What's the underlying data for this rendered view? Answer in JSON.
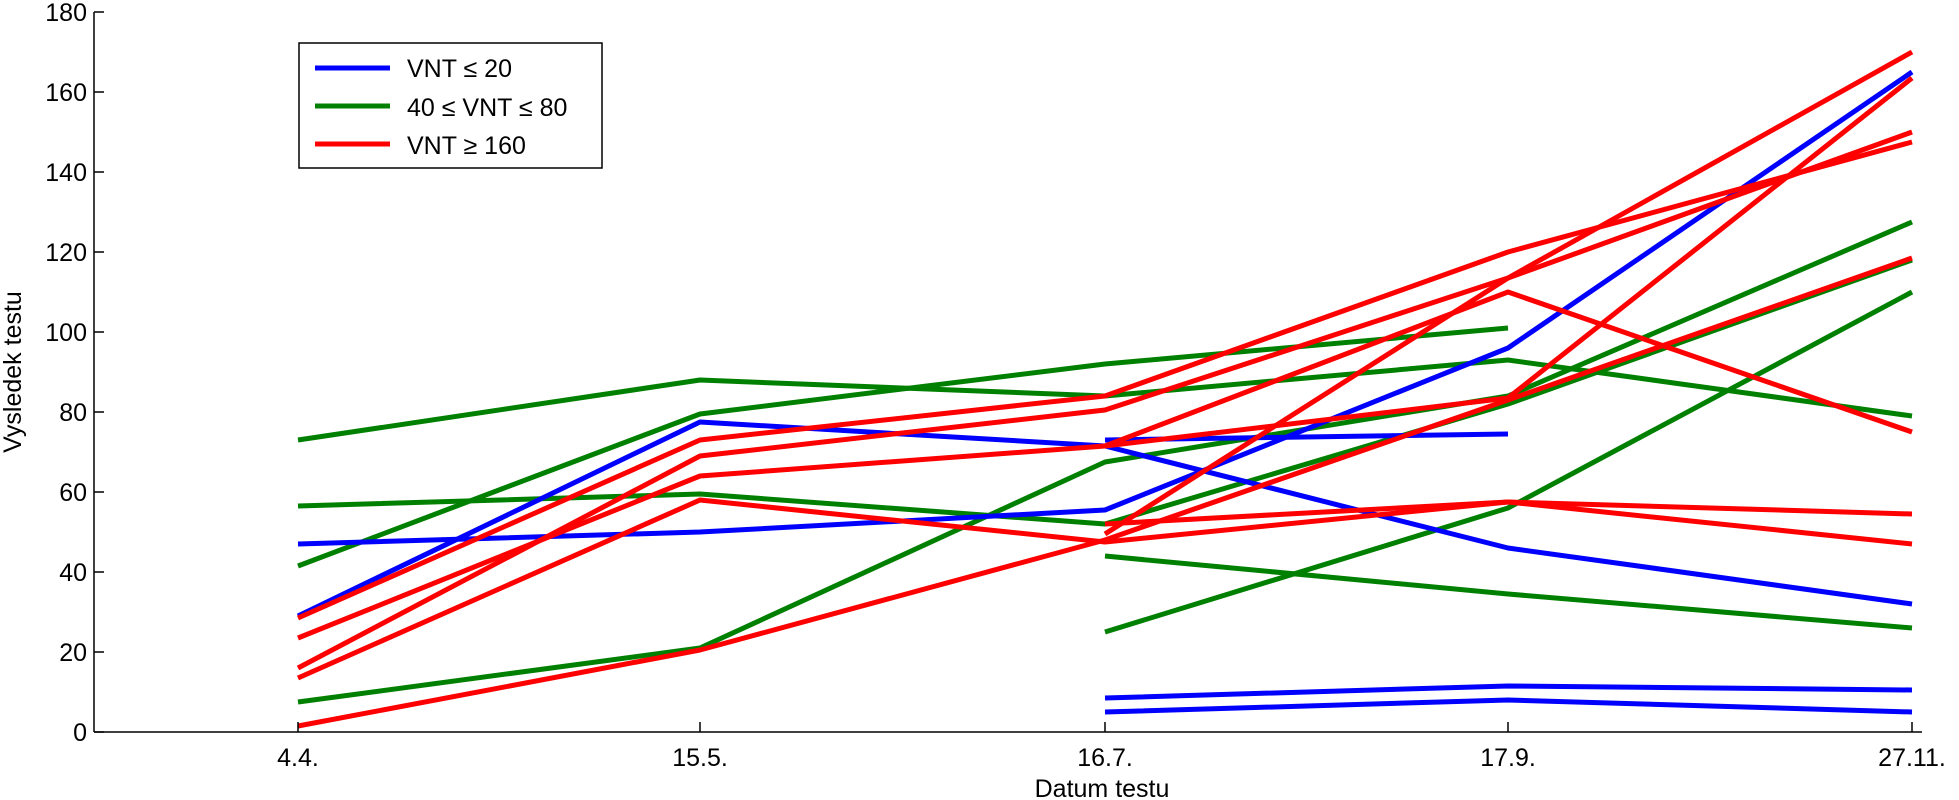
{
  "chart_data": {
    "type": "line",
    "xlabel": "Datum testu",
    "ylabel": "Vysledek testu",
    "x_categories": [
      "4.4.",
      "15.5.",
      "16.7.",
      "17.9.",
      "27.11."
    ],
    "ylim": [
      0,
      180
    ],
    "yticks": [
      0,
      20,
      40,
      60,
      80,
      100,
      120,
      140,
      160,
      180
    ],
    "grid": false,
    "legend_position": "top-left",
    "colors": {
      "blue": "#0000ff",
      "green": "#008000",
      "red": "#ff0000"
    },
    "legend": [
      {
        "label": "VNT ≤ 20",
        "color": "blue"
      },
      {
        "label": "40 ≤ VNT ≤ 80",
        "color": "green"
      },
      {
        "label": "VNT ≥ 160",
        "color": "red"
      }
    ],
    "series": [
      {
        "group": "blue",
        "points": [
          [
            0,
            29
          ],
          [
            1,
            77.5
          ],
          [
            2,
            71.5
          ],
          [
            3,
            46
          ],
          [
            4,
            32
          ]
        ]
      },
      {
        "group": "blue",
        "points": [
          [
            0,
            47
          ],
          [
            1,
            50
          ],
          [
            2,
            55.5
          ],
          [
            3,
            96
          ],
          [
            4,
            165
          ]
        ]
      },
      {
        "group": "blue",
        "points": [
          [
            2,
            73
          ],
          [
            3,
            74.5
          ]
        ]
      },
      {
        "group": "blue",
        "points": [
          [
            2,
            8.5
          ],
          [
            3,
            11.5
          ],
          [
            4,
            10.5
          ]
        ]
      },
      {
        "group": "blue",
        "points": [
          [
            2,
            5
          ],
          [
            3,
            8
          ],
          [
            4,
            5
          ]
        ]
      },
      {
        "group": "green",
        "points": [
          [
            0,
            73
          ],
          [
            1,
            88
          ],
          [
            2,
            84
          ],
          [
            3,
            93
          ],
          [
            4,
            79
          ]
        ]
      },
      {
        "group": "green",
        "points": [
          [
            0,
            41.5
          ],
          [
            1,
            79.5
          ],
          [
            2,
            92
          ],
          [
            3,
            101
          ]
        ]
      },
      {
        "group": "green",
        "points": [
          [
            0,
            56.5
          ],
          [
            1,
            59.5
          ],
          [
            2,
            52
          ],
          [
            3,
            82
          ],
          [
            4,
            118
          ]
        ]
      },
      {
        "group": "green",
        "points": [
          [
            0,
            7.5
          ],
          [
            1,
            21
          ],
          [
            2,
            67.5
          ],
          [
            3,
            84
          ],
          [
            4,
            127.5
          ]
        ]
      },
      {
        "group": "green",
        "points": [
          [
            2,
            25
          ],
          [
            3,
            56
          ],
          [
            4,
            110
          ]
        ]
      },
      {
        "group": "green",
        "points": [
          [
            2,
            44
          ],
          [
            3,
            34.5
          ],
          [
            4,
            26
          ]
        ]
      },
      {
        "group": "red",
        "points": [
          [
            0,
            28.5
          ],
          [
            1,
            73
          ],
          [
            2,
            84
          ],
          [
            3,
            120
          ],
          [
            4,
            147.5
          ]
        ]
      },
      {
        "group": "red",
        "points": [
          [
            0,
            23.5
          ],
          [
            1,
            64
          ],
          [
            2,
            71.5
          ],
          [
            3,
            110
          ],
          [
            4,
            75
          ]
        ]
      },
      {
        "group": "red",
        "points": [
          [
            0,
            16
          ],
          [
            1,
            69
          ],
          [
            2,
            80.5
          ],
          [
            3,
            113.5
          ],
          [
            4,
            150
          ]
        ]
      },
      {
        "group": "red",
        "points": [
          [
            0,
            13.5
          ],
          [
            1,
            58
          ],
          [
            2,
            47.5
          ],
          [
            3,
            57.5
          ],
          [
            4,
            54.5
          ]
        ]
      },
      {
        "group": "red",
        "points": [
          [
            0,
            1.5
          ],
          [
            1,
            20.5
          ],
          [
            2,
            48
          ],
          [
            3,
            83
          ],
          [
            4,
            118.5
          ]
        ]
      },
      {
        "group": "red",
        "points": [
          [
            2,
            52
          ],
          [
            3,
            57.5
          ],
          [
            4,
            47
          ]
        ]
      },
      {
        "group": "red",
        "points": [
          [
            2,
            71.5
          ],
          [
            3,
            83.5
          ],
          [
            4,
            163.5
          ]
        ]
      },
      {
        "group": "red",
        "points": [
          [
            2,
            49.5
          ],
          [
            3,
            113.5
          ],
          [
            4,
            170
          ]
        ]
      }
    ]
  }
}
